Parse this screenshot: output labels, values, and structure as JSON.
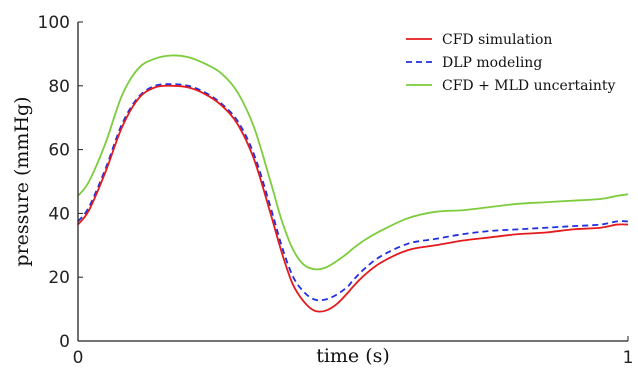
{
  "chart_data": {
    "type": "line",
    "xlabel": "time (s)",
    "ylabel": "pressure (mmHg)",
    "xlim": [
      0,
      1
    ],
    "ylim": [
      0,
      100
    ],
    "x_ticks": [
      "0",
      "1"
    ],
    "y_ticks": [
      "0",
      "20",
      "40",
      "60",
      "80",
      "100"
    ],
    "grid": false,
    "legend_position": "top-right",
    "series": [
      {
        "name": "CFD simulation",
        "color": "#e41a1c",
        "style": "solid",
        "x": [
          0,
          0.02,
          0.05,
          0.08,
          0.11,
          0.14,
          0.17,
          0.2,
          0.23,
          0.26,
          0.29,
          0.32,
          0.35,
          0.37,
          0.39,
          0.41,
          0.43,
          0.45,
          0.47,
          0.49,
          0.5,
          0.52,
          0.55,
          0.6,
          0.65,
          0.7,
          0.75,
          0.8,
          0.85,
          0.9,
          0.95,
          0.98,
          1.0
        ],
        "y": [
          36.5,
          41,
          53,
          67,
          76,
          79.5,
          80,
          79.5,
          77.5,
          74,
          68,
          57,
          40,
          28,
          18,
          12.5,
          9.5,
          9.5,
          11.5,
          15,
          17,
          20.5,
          24.5,
          28.5,
          30,
          31.5,
          32.5,
          33.5,
          34,
          35,
          35.5,
          36.5,
          36.5
        ]
      },
      {
        "name": "DLP modeling",
        "color": "#2030e0",
        "style": "dashed",
        "x": [
          0,
          0.02,
          0.05,
          0.08,
          0.11,
          0.14,
          0.17,
          0.2,
          0.23,
          0.26,
          0.29,
          0.32,
          0.35,
          0.37,
          0.39,
          0.41,
          0.43,
          0.45,
          0.47,
          0.49,
          0.5,
          0.52,
          0.55,
          0.6,
          0.65,
          0.7,
          0.75,
          0.8,
          0.85,
          0.9,
          0.95,
          0.98,
          1.0
        ],
        "y": [
          37.5,
          42,
          54,
          68,
          76.5,
          80,
          80.5,
          80,
          78,
          74.5,
          69,
          58.5,
          42,
          30,
          20.5,
          15.5,
          13,
          13,
          14.5,
          17,
          19,
          22.5,
          26.5,
          30.5,
          32,
          33.5,
          34.5,
          35,
          35.5,
          36,
          36.5,
          37.5,
          37.5
        ]
      },
      {
        "name": "CFD + MLD uncertainty",
        "color": "#7ccc3c",
        "style": "solid",
        "x": [
          0,
          0.02,
          0.05,
          0.08,
          0.11,
          0.14,
          0.17,
          0.2,
          0.23,
          0.26,
          0.29,
          0.32,
          0.35,
          0.37,
          0.39,
          0.41,
          0.43,
          0.45,
          0.47,
          0.49,
          0.5,
          0.52,
          0.55,
          0.6,
          0.65,
          0.7,
          0.75,
          0.8,
          0.85,
          0.9,
          0.95,
          0.98,
          1.0
        ],
        "y": [
          45.5,
          50,
          62,
          77,
          85.5,
          88.5,
          89.5,
          89,
          87,
          84,
          78,
          67,
          50,
          38,
          29,
          24,
          22.5,
          23,
          25,
          27.5,
          29,
          31.5,
          34.5,
          38.5,
          40.5,
          41,
          42,
          43,
          43.5,
          44,
          44.5,
          45.5,
          46
        ]
      }
    ]
  }
}
